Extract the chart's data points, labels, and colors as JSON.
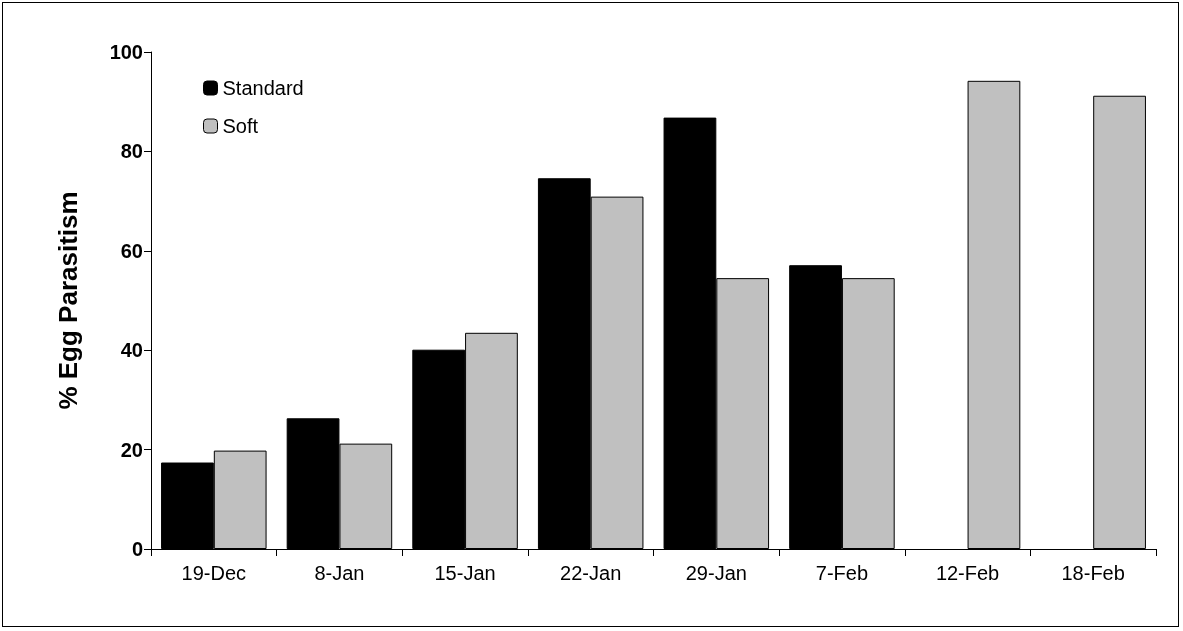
{
  "chart_data": {
    "type": "bar",
    "ylabel": "% Egg Parasitism",
    "categories": [
      "19-Dec",
      "8-Jan",
      "15-Jan",
      "22-Jan",
      "29-Jan",
      "7-Feb",
      "12-Feb",
      "18-Feb"
    ],
    "series": [
      {
        "name": "Standard",
        "color": "#000000",
        "values": [
          17.4,
          26.3,
          40.1,
          74.6,
          86.8,
          57.1,
          null,
          null
        ]
      },
      {
        "name": "Soft",
        "color": "#c0c0c0",
        "values": [
          19.8,
          21.2,
          43.5,
          70.9,
          54.5,
          54.5,
          94.2,
          91.2
        ]
      }
    ],
    "ylim": [
      0,
      100
    ],
    "yticks": [
      0,
      20,
      40,
      60,
      80,
      100
    ],
    "grid": false,
    "legend": "top left"
  }
}
